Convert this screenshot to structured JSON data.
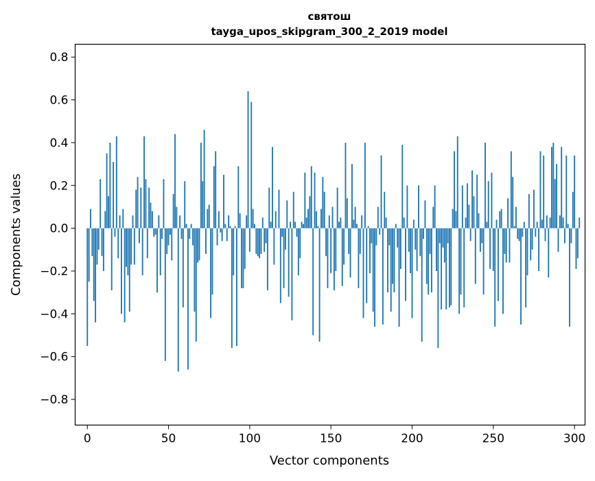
{
  "chart_data": {
    "type": "bar",
    "title": "святош",
    "subtitle": "tayga_upos_skipgram_300_2_2019 model",
    "xlabel": "Vector components",
    "ylabel": "Components values",
    "xlim": [
      -7.5,
      306.5
    ],
    "ylim": [
      -0.92,
      0.86
    ],
    "xticks": [
      0,
      50,
      100,
      150,
      200,
      250,
      300
    ],
    "xtick_labels": [
      "0",
      "50",
      "100",
      "150",
      "200",
      "250",
      "300"
    ],
    "yticks": [
      -0.8,
      -0.6,
      -0.4,
      -0.2,
      0.0,
      0.2,
      0.4,
      0.6,
      0.8
    ],
    "ytick_labels": [
      "−0.8",
      "−0.6",
      "−0.4",
      "−0.2",
      "0.0",
      "0.2",
      "0.4",
      "0.6",
      "0.8"
    ],
    "bar_color": "#1f77b4",
    "values": [
      -0.55,
      -0.25,
      0.09,
      -0.13,
      -0.34,
      -0.44,
      -0.17,
      -0.1,
      0.23,
      -0.13,
      -0.2,
      0.08,
      0.35,
      0.15,
      0.4,
      -0.29,
      0.31,
      -0.04,
      0.43,
      -0.14,
      0.06,
      -0.4,
      0.09,
      -0.44,
      -0.18,
      -0.22,
      -0.39,
      -0.17,
      0.06,
      -0.17,
      0.18,
      0.24,
      -0.07,
      0.19,
      -0.22,
      0.43,
      0.23,
      -0.14,
      0.19,
      0.12,
      0.08,
      -0.04,
      -0.03,
      -0.3,
      0.06,
      -0.22,
      -0.05,
      0.23,
      -0.62,
      -0.12,
      -0.08,
      -0.03,
      -0.15,
      0.16,
      0.44,
      0.1,
      -0.67,
      0.06,
      -0.05,
      -0.37,
      0.22,
      0.02,
      -0.66,
      -0.05,
      0.02,
      -0.08,
      -0.39,
      -0.53,
      -0.16,
      -0.15,
      0.4,
      0.22,
      0.46,
      -0.12,
      0.09,
      0.11,
      -0.42,
      -0.31,
      0.29,
      0.36,
      -0.08,
      0.08,
      -0.02,
      -0.06,
      0.25,
      0.02,
      -0.06,
      0.06,
      0.01,
      -0.56,
      -0.22,
      0.01,
      -0.55,
      0.29,
      0.07,
      -0.28,
      -0.28,
      -0.19,
      0.06,
      0.64,
      -0.11,
      0.59,
      0.09,
      0.02,
      -0.12,
      -0.13,
      -0.14,
      -0.12,
      0.05,
      -0.11,
      -0.07,
      -0.29,
      0.19,
      0.03,
      0.38,
      -0.17,
      0.08,
      0.0,
      0.18,
      -0.35,
      -0.04,
      -0.28,
      -0.1,
      0.13,
      -0.32,
      0.03,
      -0.43,
      0.17,
      0.03,
      -0.04,
      -0.22,
      -0.14,
      0.03,
      0.02,
      0.26,
      0.05,
      0.09,
      0.15,
      0.29,
      -0.5,
      0.26,
      0.08,
      0.01,
      -0.53,
      0.09,
      0.24,
      0.17,
      -0.13,
      -0.28,
      0.06,
      -0.21,
      0.1,
      -0.29,
      -0.2,
      0.19,
      0.03,
      0.05,
      -0.27,
      -0.17,
      0.4,
      0.14,
      -0.12,
      -0.23,
      0.3,
      0.04,
      0.1,
      0.02,
      -0.28,
      -0.12,
      0.06,
      -0.42,
      0.4,
      -0.35,
      0.01,
      -0.21,
      -0.07,
      -0.39,
      -0.46,
      -0.08,
      0.1,
      -0.03,
      0.34,
      -0.45,
      0.17,
      0.05,
      -0.3,
      -0.08,
      -0.39,
      -0.26,
      -0.3,
      0.02,
      -0.09,
      -0.46,
      -0.19,
      0.39,
      0.05,
      -0.34,
      0.2,
      -0.11,
      -0.21,
      -0.42,
      0.04,
      -0.1,
      -0.2,
      0.2,
      -0.13,
      -0.53,
      -0.05,
      0.13,
      -0.26,
      -0.31,
      -0.12,
      -0.3,
      0.1,
      0.2,
      -0.2,
      -0.56,
      -0.07,
      -0.38,
      -0.09,
      -0.16,
      -0.38,
      -0.07,
      -0.37,
      -0.36,
      0.09,
      0.36,
      0.08,
      0.43,
      -0.4,
      -0.31,
      0.2,
      -0.37,
      0.05,
      0.21,
      0.11,
      -0.06,
      0.27,
      0.15,
      -0.26,
      0.25,
      0.07,
      -0.11,
      -0.07,
      -0.31,
      0.4,
      0.03,
      0.22,
      -0.19,
      0.26,
      -0.2,
      -0.46,
      0.04,
      -0.34,
      0.08,
      0.09,
      -0.4,
      -0.12,
      -0.16,
      0.14,
      -0.16,
      0.36,
      0.24,
      0.01,
      0.1,
      -0.05,
      -0.06,
      -0.45,
      -0.04,
      0.03,
      -0.37,
      -0.22,
      0.16,
      -0.15,
      -0.1,
      0.18,
      -0.04,
      0.03,
      -0.2,
      0.36,
      0.04,
      0.34,
      -0.06,
      0.06,
      -0.23,
      0.05,
      0.38,
      0.4,
      0.23,
      0.3,
      -0.11,
      0.06,
      0.38,
      0.05,
      -0.07,
      0.34,
      0.02,
      -0.46,
      -0.07,
      0.17,
      0.34,
      -0.19,
      -0.14,
      0.05
    ]
  }
}
